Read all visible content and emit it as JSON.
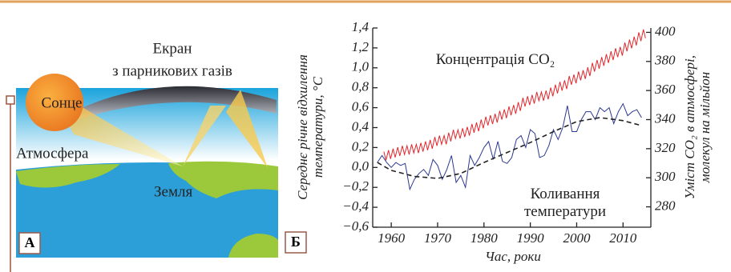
{
  "illustration": {
    "panel_label": "А",
    "screen_lines": [
      "Екран",
      "з парникових газів"
    ],
    "sun": "Сонце",
    "atmosphere": "Атмосфера",
    "earth": "Земля"
  },
  "chart_data": {
    "type": "line",
    "panel_label": "Б",
    "xlabel": "Час, роки",
    "ylabel": [
      "Середнє річне відхилення",
      "температури, °C"
    ],
    "y2label": [
      "Уміст CO₂ в атмосфері,",
      "молекул на мільйон"
    ],
    "xlim": [
      1956,
      2016
    ],
    "xticks": [
      1960,
      1970,
      1980,
      1990,
      2000,
      2010
    ],
    "ylim": [
      -0.6,
      1.4
    ],
    "yticks": [
      {
        "value": -0.6,
        "label": "−0,6"
      },
      {
        "value": -0.4,
        "label": "−0,4"
      },
      {
        "value": -0.2,
        "label": "−0,2"
      },
      {
        "value": 0,
        "label": "0,0"
      },
      {
        "value": 0.2,
        "label": "0,2"
      },
      {
        "value": 0.4,
        "label": "0,4"
      },
      {
        "value": 0.6,
        "label": "0,6"
      },
      {
        "value": 0.8,
        "label": "0,8"
      },
      {
        "value": 1.0,
        "label": "1,0"
      },
      {
        "value": 1.2,
        "label": "1,2"
      },
      {
        "value": 1.4,
        "label": "1,4"
      }
    ],
    "y2lim": [
      266,
      403
    ],
    "y2ticks": [
      280,
      300,
      320,
      340,
      360,
      380,
      400
    ],
    "series": [
      {
        "name": "Концентрація CO₂",
        "color": "#e3262b",
        "axis": "y2",
        "x": [
          1958.4,
          1958.85,
          1959.4,
          1959.85,
          1960.4,
          1960.85,
          1961.4,
          1961.85,
          1962.4,
          1962.85,
          1963.4,
          1963.85,
          1964.4,
          1964.85,
          1965.4,
          1965.85,
          1966.4,
          1966.85,
          1967.4,
          1967.85,
          1968.4,
          1968.85,
          1969.4,
          1969.85,
          1970.4,
          1970.85,
          1971.4,
          1971.85,
          1972.4,
          1972.85,
          1973.4,
          1973.85,
          1974.4,
          1974.85,
          1975.4,
          1975.85,
          1976.4,
          1976.85,
          1977.4,
          1977.85,
          1978.4,
          1978.85,
          1979.4,
          1979.85,
          1980.4,
          1980.85,
          1981.4,
          1981.85,
          1982.4,
          1982.85,
          1983.4,
          1983.85,
          1984.4,
          1984.85,
          1985.4,
          1985.85,
          1986.4,
          1986.85,
          1987.4,
          1987.85,
          1988.4,
          1988.85,
          1989.4,
          1989.85,
          1990.4,
          1990.85,
          1991.4,
          1991.85,
          1992.4,
          1992.85,
          1993.4,
          1993.85,
          1994.4,
          1994.85,
          1995.4,
          1995.85,
          1996.4,
          1996.85,
          1997.4,
          1997.85,
          1998.4,
          1998.85,
          1999.4,
          1999.85,
          2000.4,
          2000.85,
          2001.4,
          2001.85,
          2002.4,
          2002.85,
          2003.4,
          2003.85,
          2004.4,
          2004.85,
          2005.4,
          2005.85,
          2006.4,
          2006.85,
          2007.4,
          2007.85,
          2008.4,
          2008.85,
          2009.4,
          2009.85,
          2010.4,
          2010.85,
          2011.4,
          2011.85,
          2012.4,
          2012.85,
          2013.4,
          2013.85,
          2014.4,
          2014.85
        ],
        "values": [
          318,
          312,
          319,
          313,
          320,
          314,
          321,
          315,
          322,
          316,
          322,
          316,
          323,
          317,
          323,
          317,
          324,
          318,
          325,
          319,
          326,
          320,
          328,
          322,
          329,
          323,
          329,
          323,
          331,
          325,
          333,
          327,
          333,
          327,
          334,
          328,
          335,
          329,
          337,
          331,
          338,
          332,
          340,
          334,
          342,
          336,
          343,
          337,
          344,
          338,
          346,
          340,
          347,
          341,
          349,
          343,
          350,
          344,
          352,
          346,
          355,
          349,
          356,
          350,
          357,
          351,
          359,
          353,
          359,
          353,
          360,
          354,
          362,
          356,
          364,
          358,
          366,
          360,
          367,
          361,
          370,
          364,
          371,
          365,
          373,
          367,
          374,
          368,
          376,
          370,
          379,
          373,
          381,
          375,
          383,
          377,
          385,
          379,
          387,
          381,
          389,
          383,
          390,
          384,
          393,
          387,
          395,
          389,
          397,
          391,
          400,
          394,
          402,
          396
        ]
      },
      {
        "name": "Коливання температури",
        "color": "#2b3990",
        "x": [
          1957,
          1958,
          1959,
          1960,
          1961,
          1962,
          1963,
          1964,
          1965,
          1966,
          1967,
          1968,
          1969,
          1970,
          1971,
          1972,
          1973,
          1974,
          1975,
          1976,
          1977,
          1978,
          1979,
          1980,
          1981,
          1982,
          1983,
          1984,
          1985,
          1986,
          1987,
          1988,
          1989,
          1990,
          1991,
          1992,
          1993,
          1994,
          1995,
          1996,
          1997,
          1998,
          1999,
          2000,
          2001,
          2002,
          2003,
          2004,
          2005,
          2006,
          2007,
          2008,
          2009,
          2010,
          2011,
          2012,
          2013,
          2014
        ],
        "values": [
          0.05,
          0.12,
          0.05,
          0.0,
          0.05,
          0.02,
          0.04,
          -0.22,
          -0.12,
          -0.06,
          -0.02,
          -0.08,
          0.08,
          0.02,
          -0.12,
          -0.02,
          0.12,
          -0.15,
          -0.08,
          -0.2,
          0.12,
          0.02,
          0.1,
          0.2,
          0.26,
          0.08,
          0.26,
          0.06,
          0.04,
          0.1,
          0.28,
          0.32,
          0.2,
          0.38,
          0.34,
          0.1,
          0.12,
          0.22,
          0.38,
          0.28,
          0.4,
          0.62,
          0.36,
          0.36,
          0.48,
          0.56,
          0.56,
          0.48,
          0.6,
          0.56,
          0.6,
          0.44,
          0.56,
          0.64,
          0.52,
          0.56,
          0.58,
          0.5
        ]
      },
      {
        "color": "#222222",
        "dashed": true,
        "x": [
          1957,
          1960,
          1965,
          1970,
          1975,
          1980,
          1985,
          1990,
          1995,
          2000,
          2005,
          2010,
          2014
        ],
        "values": [
          0.05,
          -0.03,
          -0.09,
          -0.11,
          -0.06,
          0.05,
          0.15,
          0.25,
          0.36,
          0.46,
          0.5,
          0.47,
          0.42
        ]
      }
    ]
  }
}
